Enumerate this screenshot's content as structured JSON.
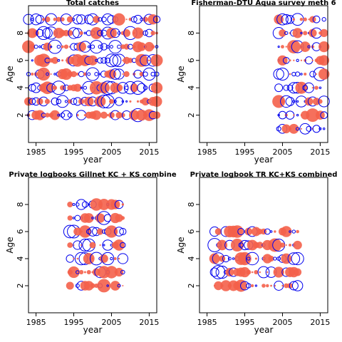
{
  "chart_data": [
    {
      "type": "scatter",
      "title": "Total catches",
      "xlabel": "year",
      "ylabel": "Age",
      "xlim": [
        1983,
        2017
      ],
      "ylim": [
        0,
        10
      ],
      "xticks": [
        "1985",
        "1995",
        "2005",
        "2015"
      ],
      "yticks": [
        "2",
        "4",
        "6",
        "8"
      ],
      "years": [
        1983,
        2017
      ],
      "ages": [
        2,
        9
      ],
      "seed": 11
    },
    {
      "type": "scatter",
      "title": "Fisherman-DTU Aqua survey meth 6",
      "xlabel": "year",
      "ylabel": "Age",
      "xlim": [
        1983,
        2017
      ],
      "ylim": [
        0,
        10
      ],
      "xticks": [
        "1985",
        "1995",
        "2005",
        "2015"
      ],
      "yticks": [
        "2",
        "4",
        "6",
        "8"
      ],
      "years": [
        2004,
        2016
      ],
      "ages": [
        1,
        9
      ],
      "seed": 23
    },
    {
      "type": "scatter",
      "title": "Private logbooks Gillnet KC + KS combine",
      "xlabel": "year",
      "ylabel": "Age",
      "xlim": [
        1983,
        2017
      ],
      "ylim": [
        0,
        10
      ],
      "xticks": [
        "1985",
        "1995",
        "2005",
        "2015"
      ],
      "yticks": [
        "2",
        "4",
        "6",
        "8"
      ],
      "years": [
        1994,
        2008
      ],
      "ages": [
        2,
        8
      ],
      "seed": 37
    },
    {
      "type": "scatter",
      "title": "Private logbook TR KC+KS combined",
      "xlabel": "year",
      "ylabel": "Age",
      "xlim": [
        1983,
        2017
      ],
      "ylim": [
        0,
        10
      ],
      "xticks": [
        "1985",
        "1995",
        "2005",
        "2015"
      ],
      "yticks": [
        "2",
        "4",
        "6",
        "8"
      ],
      "years": [
        1987,
        2009
      ],
      "ages": [
        2,
        6
      ],
      "seed": 53
    }
  ],
  "colors": {
    "positive": "#f4604a",
    "negative": "#0000ee"
  }
}
